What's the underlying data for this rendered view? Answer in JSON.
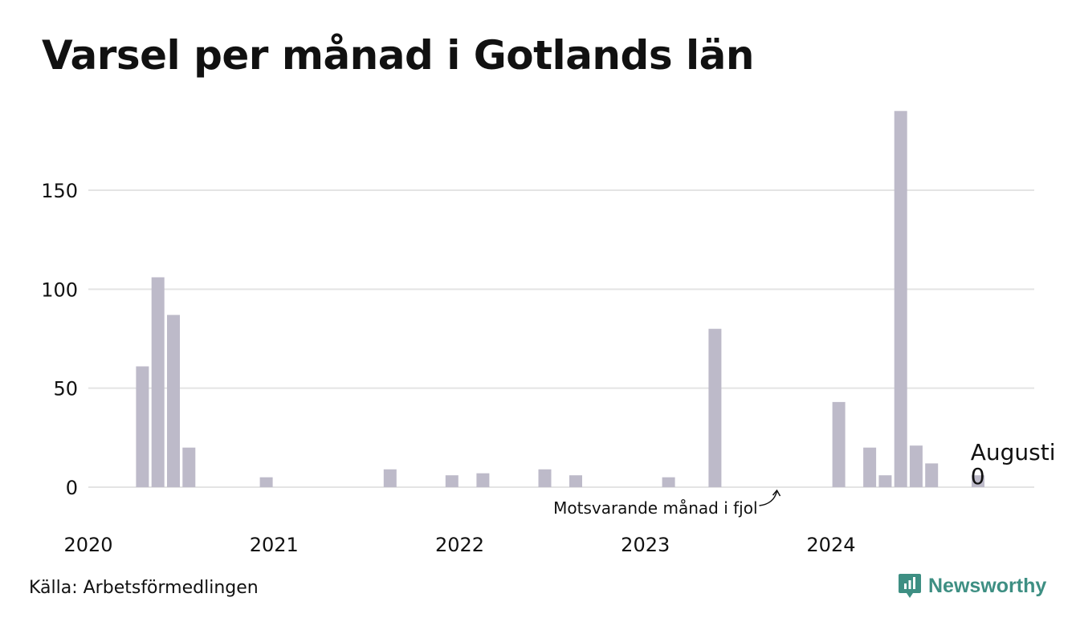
{
  "title": "Varsel per månad i Gotlands län",
  "source": "Källa: Arbetsförmedlingen",
  "brand": {
    "name": "Newsworthy",
    "icon": "newsworthy-logo-icon",
    "color": "#3e8f83"
  },
  "colors": {
    "bar": "#bdbac9",
    "grid": "#e4e4e4",
    "text": "#111111"
  },
  "chart_data": {
    "type": "bar",
    "title": "Varsel per månad i Gotlands län",
    "xlabel": "",
    "ylabel": "",
    "ylim": [
      0,
      190
    ],
    "yticks": [
      0,
      50,
      100,
      150
    ],
    "xticks": [
      "2020",
      "2021",
      "2022",
      "2023",
      "2024"
    ],
    "grid": true,
    "start_month": "2020-01",
    "series": [
      {
        "values": [
          0,
          0,
          61,
          106,
          87,
          20,
          0,
          0,
          0,
          0,
          5,
          0,
          0,
          0,
          0,
          0,
          0,
          0,
          9,
          0,
          0,
          0,
          6,
          0,
          7,
          0,
          0,
          0,
          9,
          0,
          6,
          0,
          0,
          0,
          0,
          0,
          5,
          0,
          0,
          80,
          0,
          0,
          0,
          0,
          0,
          0,
          0,
          43,
          0,
          20,
          6,
          190,
          21,
          12,
          0,
          0,
          6,
          0
        ]
      }
    ],
    "annotations": [
      {
        "text": "Motsvarande månad i fjol",
        "month": "2023-08"
      },
      {
        "text": "Augusti",
        "month": "2024-08"
      },
      {
        "text": "0",
        "month": "2024-08"
      }
    ]
  }
}
